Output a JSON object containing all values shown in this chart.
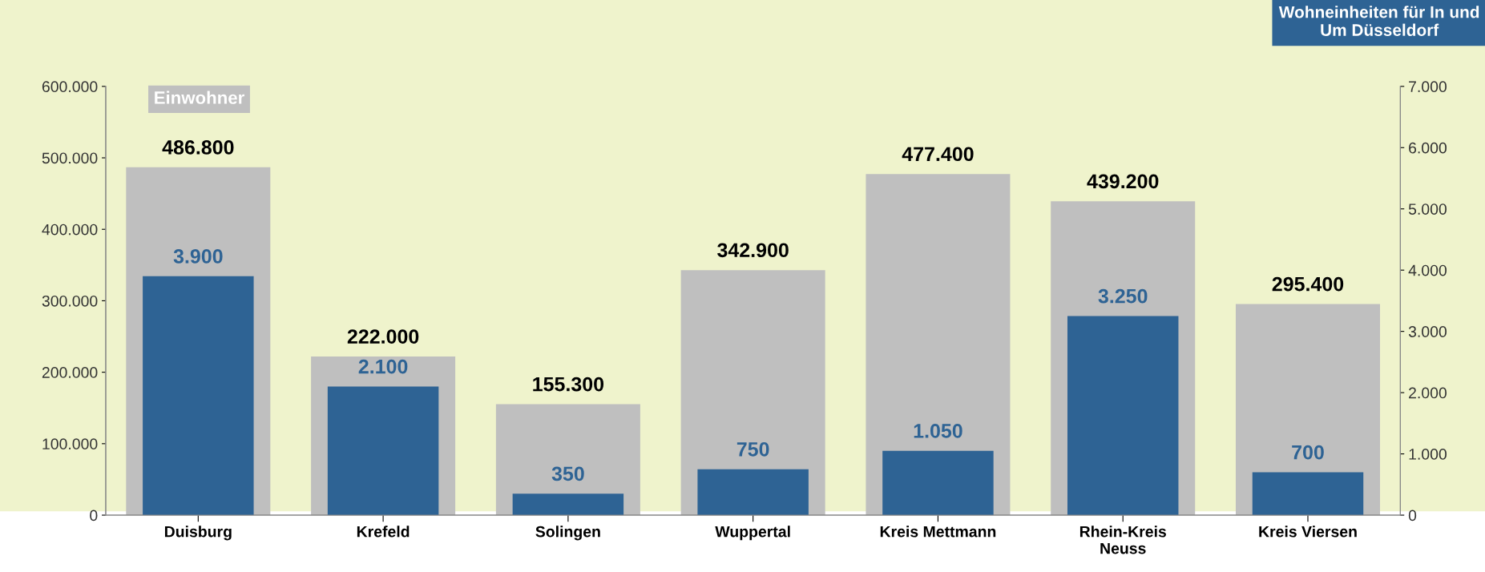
{
  "chart_data": {
    "type": "bar",
    "categories": [
      "Duisburg",
      "Krefeld",
      "Solingen",
      "Wuppertal",
      "Kreis Mettmann",
      "Rhein-Kreis\nNeuss",
      "Kreis Viersen"
    ],
    "series": [
      {
        "name": "Einwohner",
        "color": "#bfbfbf",
        "axis": "y",
        "values": [
          486800,
          222000,
          155300,
          342900,
          477400,
          439200,
          295400
        ],
        "value_labels": [
          "486.800",
          "222.000",
          "155.300",
          "342.900",
          "477.400",
          "439.200",
          "295.400"
        ]
      },
      {
        "name": "Wohneinheiten für In und\nUm Düsseldorf",
        "color": "#2e6394",
        "axis": "y2",
        "values": [
          3900,
          2100,
          350,
          750,
          1050,
          3250,
          700
        ],
        "value_labels": [
          "3.900",
          "2.100",
          "350",
          "750",
          "1.050",
          "3.250",
          "700"
        ]
      }
    ],
    "ylim": [
      0,
      600000
    ],
    "yticks": [
      {
        "value": 0,
        "label": "0"
      },
      {
        "value": 100000,
        "label": "100.000"
      },
      {
        "value": 200000,
        "label": "200.000"
      },
      {
        "value": 300000,
        "label": "300.000"
      },
      {
        "value": 400000,
        "label": "400.000"
      },
      {
        "value": 500000,
        "label": "500.000"
      },
      {
        "value": 600000,
        "label": "600.000"
      }
    ],
    "y2lim": [
      0,
      7000
    ],
    "y2ticks": [
      {
        "value": 0,
        "label": "0"
      },
      {
        "value": 1000,
        "label": "1.000"
      },
      {
        "value": 2000,
        "label": "2.000"
      },
      {
        "value": 3000,
        "label": "3.000"
      },
      {
        "value": 4000,
        "label": "4.000"
      },
      {
        "value": 5000,
        "label": "5.000"
      },
      {
        "value": 6000,
        "label": "6.000"
      },
      {
        "value": 7000,
        "label": "7.000"
      }
    ],
    "grid": false,
    "legend": false
  }
}
